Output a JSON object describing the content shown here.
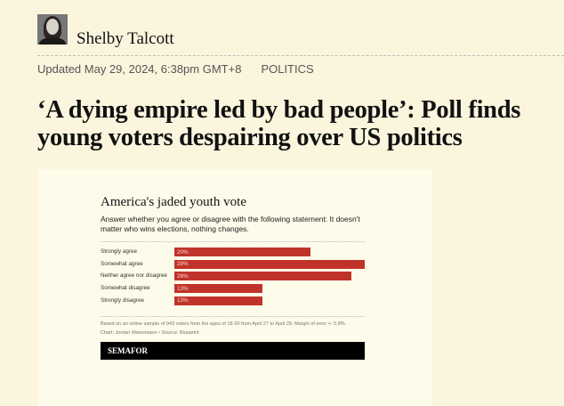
{
  "author": {
    "name": "Shelby Talcott"
  },
  "meta": {
    "updated": "Updated May 29, 2024, 6:38pm GMT+8",
    "category": "POLITICS"
  },
  "headline": "‘A dying empire led by bad people’: Poll finds young voters despairing over US politics",
  "chart_data": {
    "type": "bar",
    "orientation": "horizontal",
    "title": "America's jaded youth vote",
    "subtitle": "Answer whether you agree or disagree with the following statement: It doesn't matter who wins elections, nothing changes.",
    "categories": [
      "Strongly agree",
      "Somewhat agree",
      "Neither agree nor disagree",
      "Somewhat disagree",
      "Strongly disagree"
    ],
    "values": [
      20,
      28,
      26,
      13,
      13
    ],
    "labels": [
      "20%",
      "28%",
      "26%",
      "13%",
      "13%"
    ],
    "bar_color": "#c0332b",
    "note": "Based on an online sample of 943 voters from the ages of 18-30 from April 27 to April 29. Margin of error +- 5.8%.",
    "credit": "Chart: Jordan Weissmann • Source: Blueprint",
    "brand": "SEMAFOR"
  }
}
